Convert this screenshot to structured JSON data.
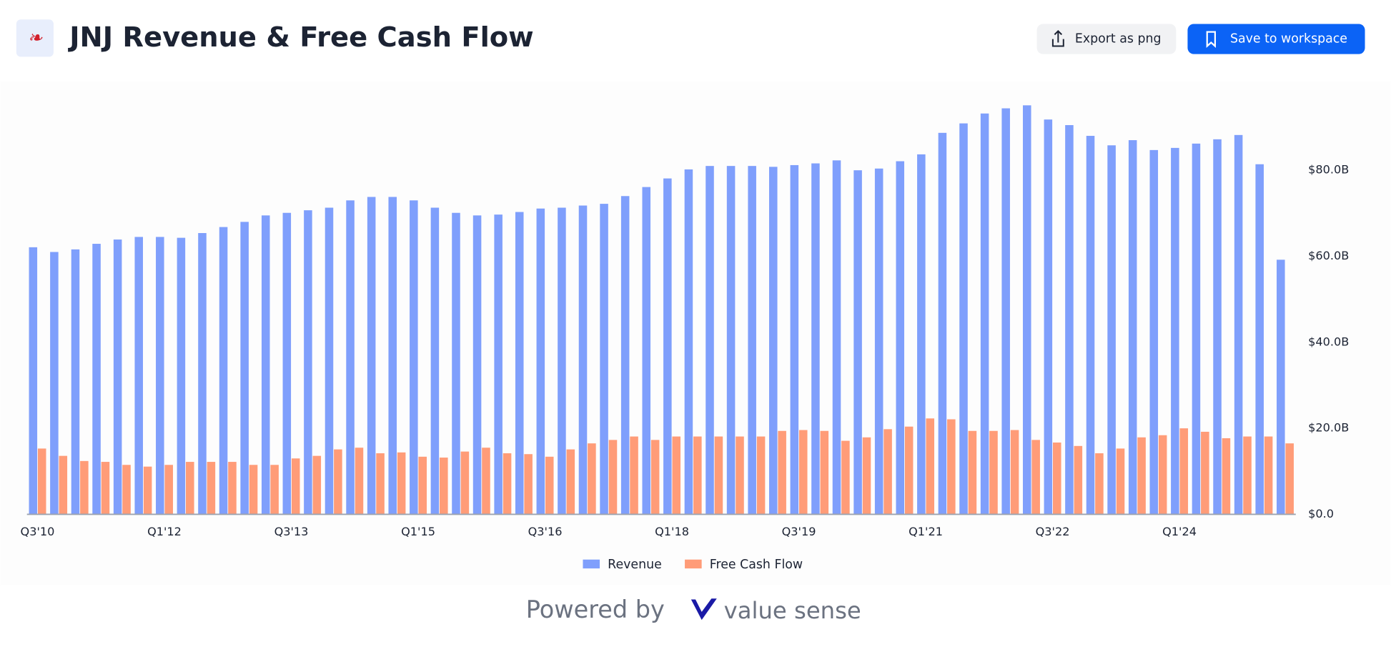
{
  "chart_data": {
    "type": "bar",
    "title": "JNJ Revenue & Free Cash Flow",
    "categories": [
      "Q3'10",
      null,
      null,
      null,
      null,
      null,
      "Q1'12",
      null,
      null,
      null,
      null,
      null,
      "Q3'13",
      null,
      null,
      null,
      null,
      null,
      "Q1'15",
      null,
      null,
      null,
      null,
      null,
      "Q3'16",
      null,
      null,
      null,
      null,
      null,
      "Q1'18",
      null,
      null,
      null,
      null,
      null,
      "Q3'19",
      null,
      null,
      null,
      null,
      null,
      "Q1'21",
      null,
      null,
      null,
      null,
      null,
      "Q3'22",
      null,
      null,
      null,
      null,
      null,
      "Q1'24",
      null,
      null,
      null,
      null,
      null
    ],
    "series": [
      {
        "name": "Revenue",
        "color": "#7f9ffc",
        "values": [
          62.1,
          61.0,
          61.6,
          62.9,
          63.9,
          64.5,
          64.5,
          64.3,
          65.4,
          66.8,
          68.0,
          69.5,
          70.1,
          70.7,
          71.3,
          73.0,
          73.8,
          73.8,
          73.0,
          71.3,
          70.1,
          69.5,
          69.7,
          70.3,
          71.1,
          71.3,
          71.8,
          72.2,
          74.0,
          76.1,
          78.1,
          80.2,
          81.0,
          81.0,
          81.0,
          80.8,
          81.2,
          81.6,
          82.3,
          80.0,
          80.4,
          82.1,
          83.7,
          88.7,
          90.9,
          93.2,
          94.4,
          95.1,
          91.8,
          90.5,
          88.0,
          85.8,
          87.0,
          84.7,
          85.2,
          86.2,
          87.2,
          88.2,
          81.4,
          59.2
        ]
      },
      {
        "name": "Free Cash Flow",
        "color": "#ff9c78",
        "values": [
          15.3,
          13.6,
          12.4,
          12.2,
          11.5,
          11.1,
          11.5,
          12.2,
          12.2,
          12.2,
          11.5,
          11.5,
          13.0,
          13.6,
          15.1,
          15.5,
          14.2,
          14.4,
          13.4,
          13.2,
          14.6,
          15.5,
          14.2,
          14.0,
          13.4,
          15.1,
          16.5,
          17.3,
          18.1,
          17.3,
          18.1,
          18.1,
          18.1,
          18.1,
          18.1,
          19.4,
          19.6,
          19.4,
          17.1,
          17.9,
          19.8,
          20.4,
          22.3,
          22.1,
          19.4,
          19.4,
          19.6,
          17.3,
          16.7,
          15.9,
          14.2,
          15.3,
          17.9,
          18.4,
          20.0,
          19.2,
          17.7,
          18.1,
          18.1,
          16.5
        ]
      }
    ],
    "ylim": [
      0,
      100
    ],
    "yticks": [
      {
        "value": 0,
        "label": "$0.0"
      },
      {
        "value": 20,
        "label": "$20.0B"
      },
      {
        "value": 40,
        "label": "$40.0B"
      },
      {
        "value": 60,
        "label": "$60.0B"
      },
      {
        "value": 80,
        "label": "$80.0B"
      }
    ],
    "grid": false,
    "legend": "bottom"
  },
  "ui": {
    "export_button": "Export as png",
    "save_button": "Save to workspace"
  },
  "footer": {
    "powered_by": "Powered by",
    "brand": "value sense"
  }
}
